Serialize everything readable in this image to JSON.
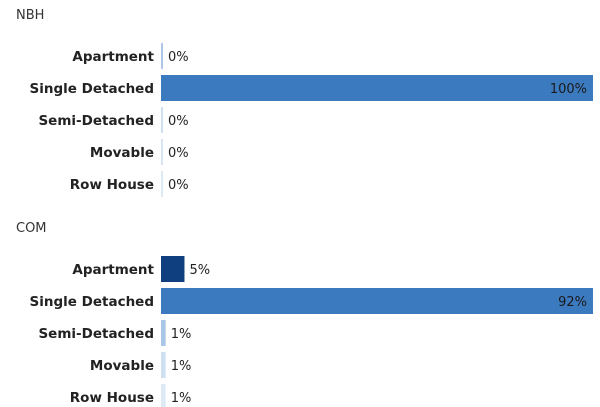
{
  "chart_data": [
    {
      "type": "bar",
      "orientation": "horizontal",
      "title": "NBH",
      "categories": [
        "Apartment",
        "Single Detached",
        "Semi-Detached",
        "Movable",
        "Row House"
      ],
      "values": [
        0,
        100,
        0,
        0,
        0
      ],
      "value_labels": [
        "0%",
        "100%",
        "0%",
        "0%",
        "0%"
      ],
      "xlim": [
        0,
        100
      ],
      "bar_colors": [
        "#aec7e8",
        "#3c7abf",
        "#cfe0f1",
        "#d6e4f3",
        "#dde9f5"
      ]
    },
    {
      "type": "bar",
      "orientation": "horizontal",
      "title": "COM",
      "categories": [
        "Apartment",
        "Single Detached",
        "Semi-Detached",
        "Movable",
        "Row House"
      ],
      "values": [
        5,
        92,
        1,
        1,
        1
      ],
      "value_labels": [
        "5%",
        "92%",
        "1%",
        "1%",
        "1%"
      ],
      "xlim": [
        0,
        92
      ],
      "bar_colors": [
        "#0f3f7f",
        "#3c7abf",
        "#aac6e6",
        "#cfe0f1",
        "#dde9f5"
      ]
    }
  ]
}
